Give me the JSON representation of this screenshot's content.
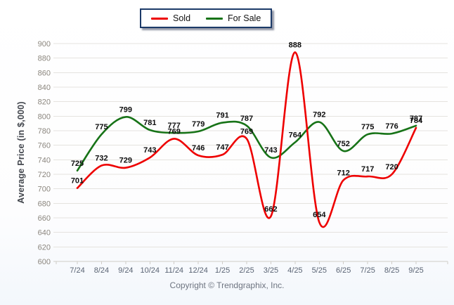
{
  "legend": {
    "items": [
      {
        "label": "Sold",
        "color": "#ee0000"
      },
      {
        "label": "For Sale",
        "color": "#177317"
      }
    ]
  },
  "y_axis": {
    "title": "Average Price (in $,000)"
  },
  "footer": {
    "text": "Copyright © Trendgraphix, Inc."
  },
  "chart_data": {
    "type": "line",
    "title": "",
    "categories": [
      "7/24",
      "8/24",
      "9/24",
      "10/24",
      "11/24",
      "12/24",
      "1/25",
      "2/25",
      "3/25",
      "4/25",
      "5/25",
      "6/25",
      "7/25",
      "8/25",
      "9/25"
    ],
    "series": [
      {
        "name": "Sold",
        "color": "#ee0000",
        "values": [
          701,
          732,
          729,
          743,
          769,
          746,
          747,
          769,
          662,
          888,
          654,
          712,
          717,
          720,
          784
        ]
      },
      {
        "name": "For Sale",
        "color": "#177317",
        "values": [
          725,
          775,
          799,
          781,
          777,
          779,
          791,
          787,
          743,
          764,
          792,
          752,
          775,
          776,
          787
        ]
      }
    ],
    "xlabel": "",
    "ylabel": "Average Price (in $,000)",
    "ylim": [
      600,
      900
    ],
    "ytick_step": 20,
    "grid": "horizontal",
    "smooth": true,
    "data_labels": true,
    "legend_position": "top-center"
  },
  "style": {
    "grid_color": "#e5e3df",
    "axis_color": "#cfccc7",
    "ytick_color": "#8b867e",
    "xtick_color": "#5a6474",
    "data_label_color": "#0d0d0d"
  }
}
